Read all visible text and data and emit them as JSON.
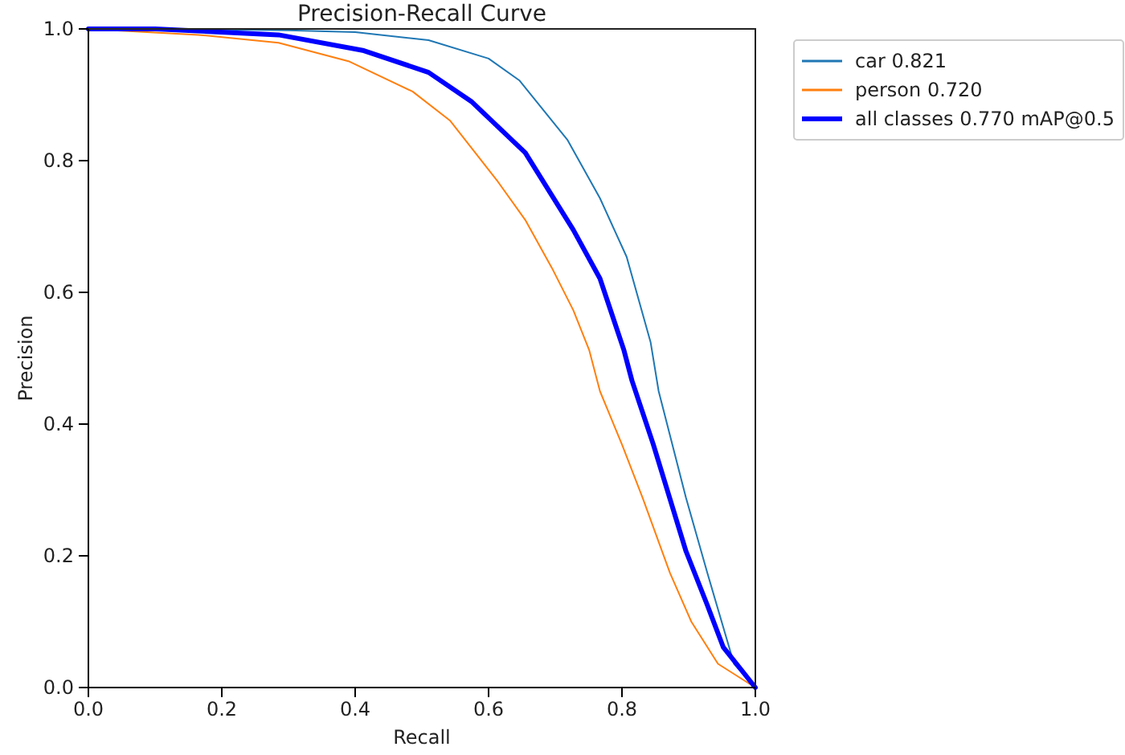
{
  "chart_data": {
    "type": "line",
    "title": "Precision-Recall Curve",
    "xlabel": "Recall",
    "ylabel": "Precision",
    "xlim": [
      0,
      1
    ],
    "ylim": [
      0,
      1
    ],
    "xticks": [
      {
        "value": 0,
        "label": "0.0"
      },
      0.2,
      0.4,
      0.6,
      0.8,
      {
        "value": 1,
        "label": "1.0"
      }
    ],
    "yticks": [
      {
        "value": 0,
        "label": "0.0"
      },
      0.2,
      0.4,
      0.6,
      0.8,
      {
        "value": 1,
        "label": "1.0"
      }
    ],
    "legend": "top right",
    "grid": false,
    "marker": "none",
    "line_style": "solid",
    "series": [
      {
        "name": "car 0.821",
        "color": "#1f77b4",
        "x": [
          0,
          0.1,
          0.3,
          0.4,
          0.51,
          0.6,
          0.646,
          0.718,
          0.767,
          0.807,
          0.843,
          0.855,
          0.896,
          0.928,
          0.968,
          1
        ],
        "values": [
          1,
          1,
          0.998,
          0.995,
          0.983,
          0.955,
          0.922,
          0.832,
          0.743,
          0.654,
          0.524,
          0.45,
          0.288,
          0.174,
          0.036,
          0
        ]
      },
      {
        "name": "person 0.720",
        "color": "#ff7f0e",
        "x": [
          0,
          0.165,
          0.285,
          0.39,
          0.486,
          0.542,
          0.614,
          0.655,
          0.695,
          0.727,
          0.751,
          0.767,
          0.8,
          0.831,
          0.872,
          0.904,
          0.944,
          1
        ],
        "values": [
          1,
          0.991,
          0.979,
          0.951,
          0.905,
          0.861,
          0.768,
          0.71,
          0.637,
          0.573,
          0.512,
          0.45,
          0.369,
          0.288,
          0.174,
          0.1,
          0.036,
          0
        ]
      },
      {
        "name": "all classes 0.770 mAP@0.5",
        "color": "#0000ff",
        "x": [
          0,
          0.1,
          0.285,
          0.413,
          0.51,
          0.574,
          0.655,
          0.727,
          0.767,
          0.803,
          0.815,
          0.847,
          0.896,
          0.928,
          0.952,
          1
        ],
        "values": [
          1,
          1,
          0.991,
          0.967,
          0.934,
          0.89,
          0.812,
          0.695,
          0.621,
          0.512,
          0.466,
          0.369,
          0.207,
          0.125,
          0.061,
          0
        ]
      }
    ]
  }
}
